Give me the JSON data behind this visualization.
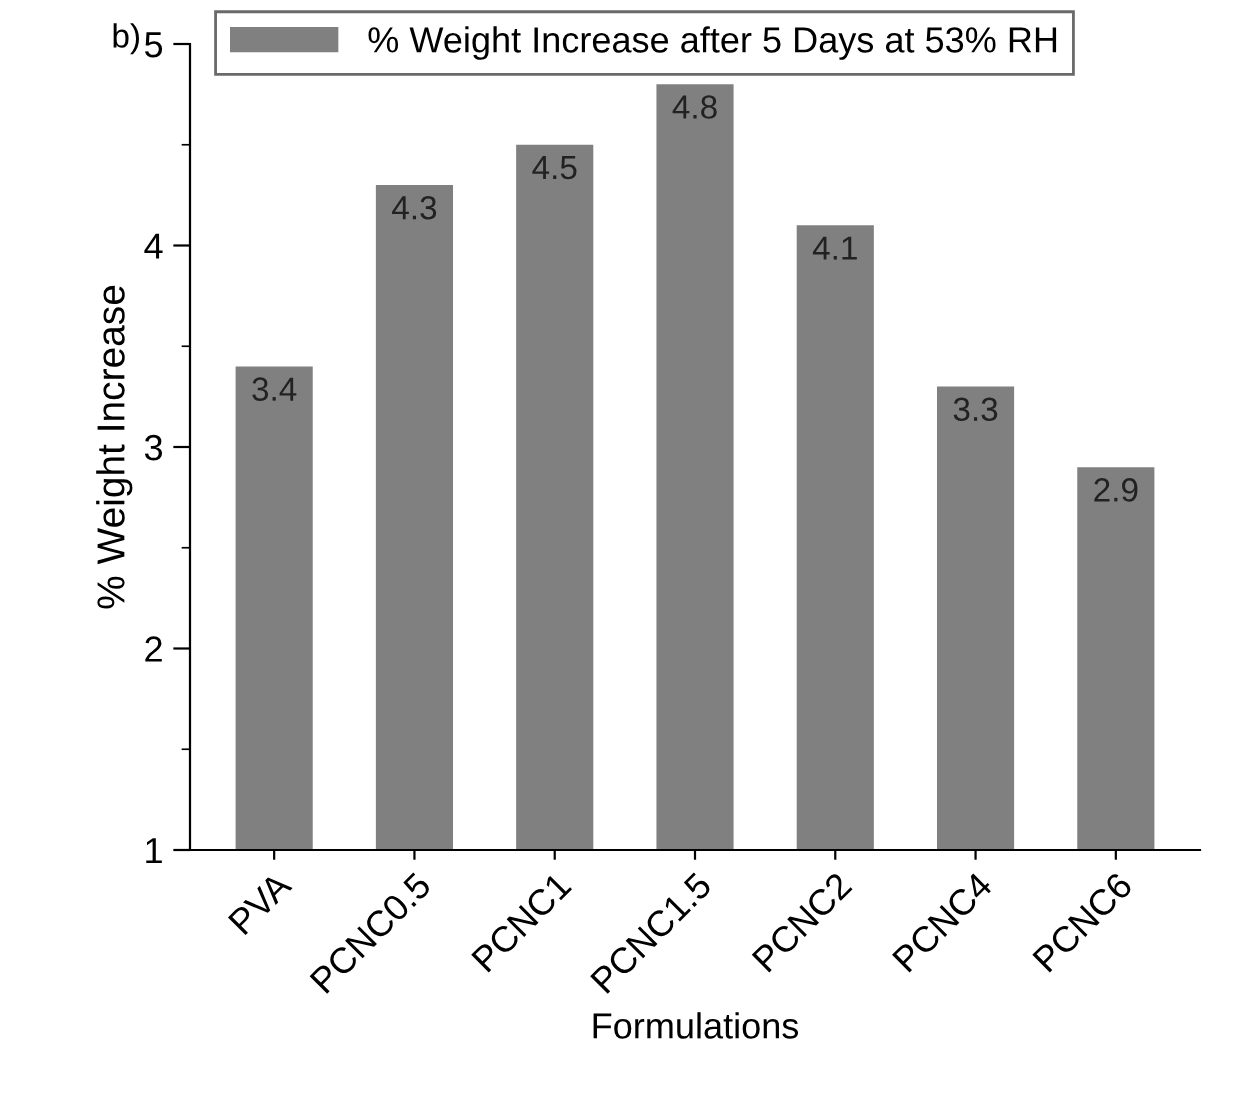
{
  "chart_data": {
    "type": "bar",
    "xlabel": "Formulations",
    "ylabel": "% Weight Increase",
    "categories": [
      "PVA",
      "PCNC0.5",
      "PCNC1",
      "PCNC1.5",
      "PCNC2",
      "PCNC4",
      "PCNC6"
    ],
    "series": [
      {
        "name": "% Weight Increase after 5 Days at 53% RH",
        "color": "#808080",
        "values": [
          3.4,
          4.3,
          4.5,
          4.8,
          4.1,
          3.3,
          2.9
        ]
      }
    ],
    "ylim": [
      1,
      5
    ],
    "yticks": [
      1,
      2,
      3,
      4,
      5
    ],
    "data_labels": true,
    "legend": "top",
    "grid": false,
    "annotations": [
      "b)"
    ]
  }
}
